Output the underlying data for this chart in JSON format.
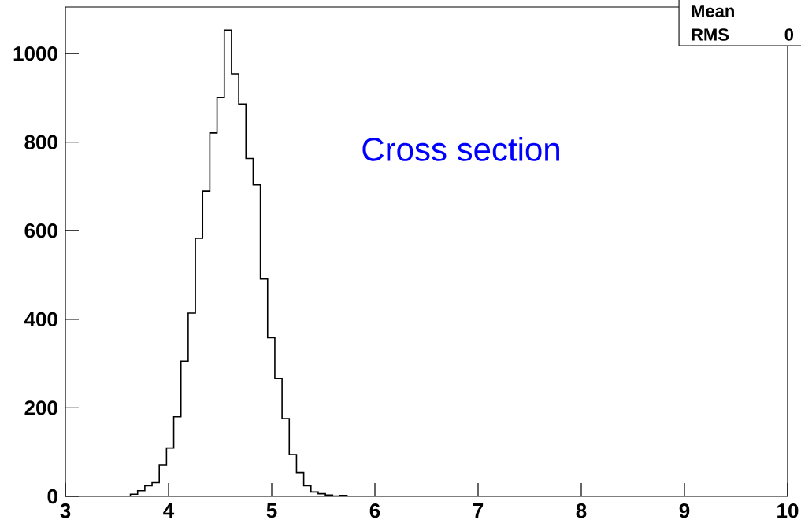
{
  "chart_data": {
    "type": "histogram",
    "bins": [
      3,
      3.07,
      3.14,
      3.21,
      3.28,
      3.35,
      3.42,
      3.49,
      3.56,
      3.63,
      3.7,
      3.77,
      3.84,
      3.91,
      3.98,
      4.05,
      4.12,
      4.19,
      4.26,
      4.33,
      4.4,
      4.47,
      4.54,
      4.61,
      4.68,
      4.75,
      4.82,
      4.89,
      4.96,
      5.03,
      5.1,
      5.17,
      5.24,
      5.31,
      5.38,
      5.45,
      5.52,
      5.59,
      5.66,
      5.73,
      5.8,
      5.87,
      5.94,
      6.01,
      6.08,
      6.15,
      6.22,
      6.29,
      6.36,
      6.43,
      6.5,
      6.57,
      6.64,
      6.71,
      6.78,
      6.85,
      6.92,
      6.99,
      7.06,
      7.13,
      7.2,
      7.27,
      7.34,
      7.41,
      7.48,
      7.55,
      7.62,
      7.69,
      7.76,
      7.83,
      7.9,
      7.97,
      8.04,
      8.11,
      8.18,
      8.25,
      8.32,
      8.39,
      8.46,
      8.53,
      8.6,
      8.67,
      8.74,
      8.81,
      8.88,
      8.95,
      9.02,
      9.09,
      9.16,
      9.23,
      9.3,
      9.37,
      9.44,
      9.51,
      9.58,
      9.65,
      9.72,
      9.79,
      9.86,
      9.93,
      10
    ],
    "values": [
      0,
      0,
      0,
      0,
      0,
      0,
      0,
      0,
      0,
      5,
      13,
      24,
      31,
      71,
      109,
      180,
      305,
      414,
      583,
      689,
      821,
      901,
      1053,
      954,
      886,
      763,
      704,
      491,
      358,
      266,
      176,
      94,
      54,
      24,
      10,
      6,
      3,
      1,
      2,
      0,
      0,
      0,
      0,
      0,
      0,
      0,
      0,
      0,
      0,
      0,
      0,
      0,
      0,
      0,
      0,
      0,
      0,
      0,
      0,
      0,
      0,
      0,
      0,
      0,
      0,
      0,
      0,
      0,
      0,
      0,
      0,
      0,
      0,
      0,
      0,
      0,
      0,
      0,
      0,
      0,
      0,
      0,
      0,
      0,
      0,
      0,
      0,
      0,
      0,
      0,
      0,
      0,
      0,
      0,
      0,
      0,
      0,
      0,
      0,
      0
    ],
    "color": "#000000",
    "xlim": [
      3,
      10
    ],
    "ylim": [
      0,
      1105
    ],
    "xticks": [
      3,
      4,
      5,
      6,
      7,
      8,
      9,
      10
    ],
    "yticks": [
      0,
      200,
      400,
      600,
      800,
      1000
    ],
    "annotations": [
      "Cross section",
      "Mean",
      "RMS",
      "0"
    ]
  }
}
